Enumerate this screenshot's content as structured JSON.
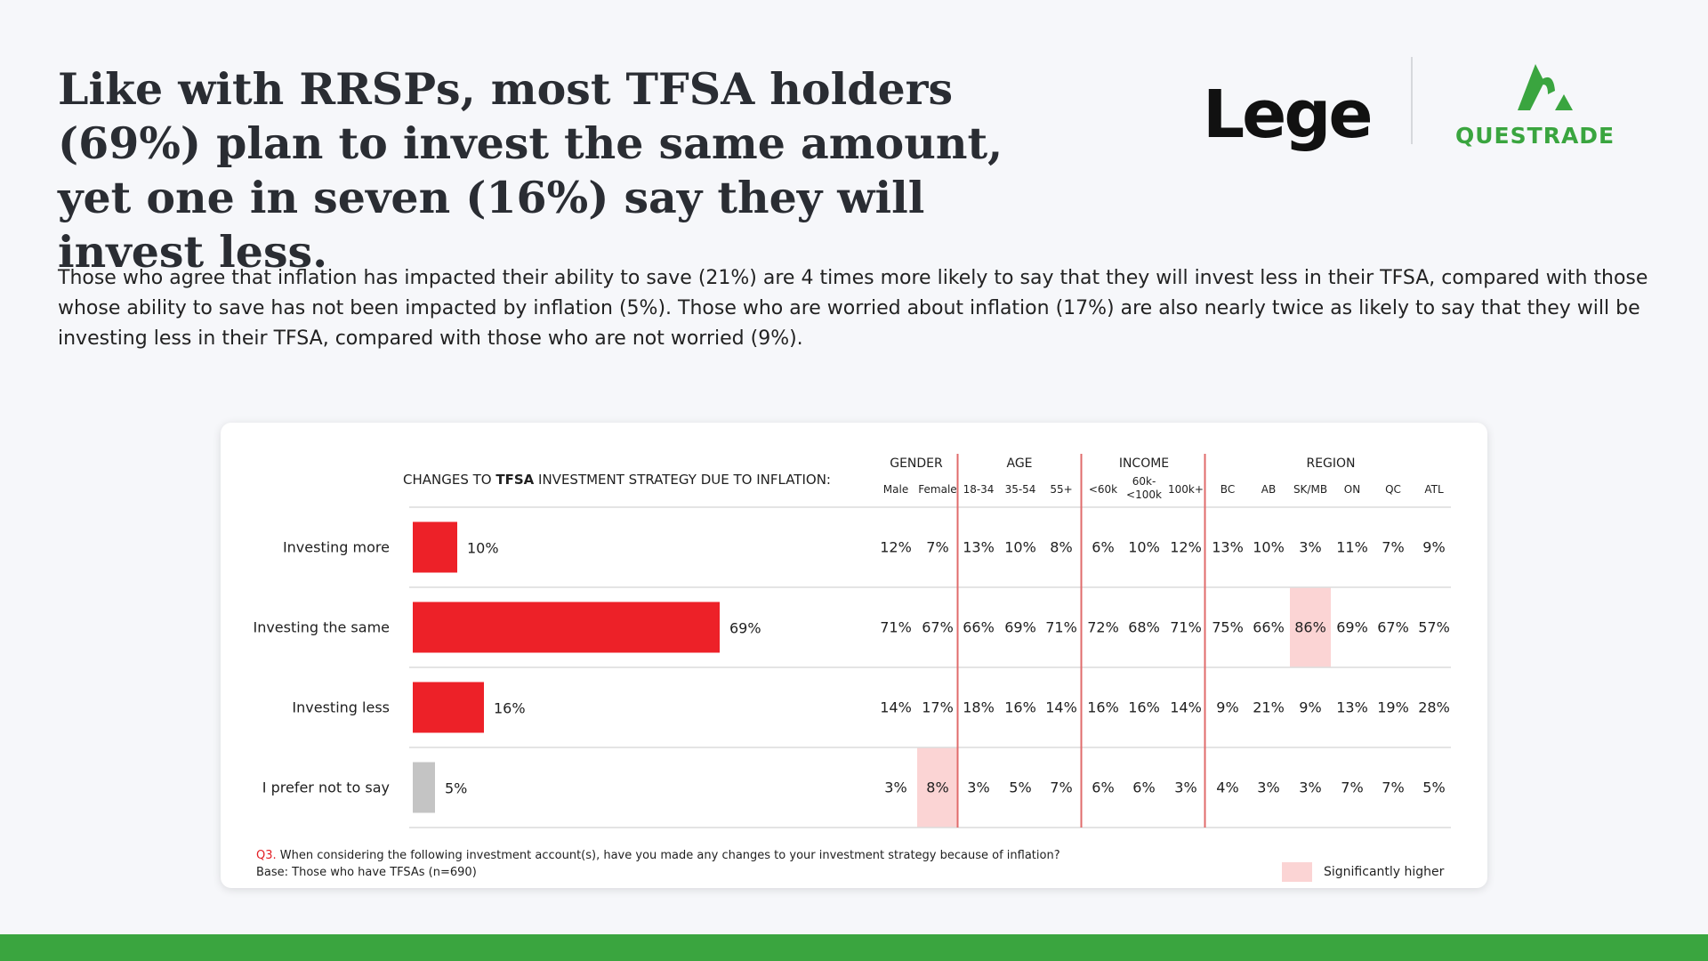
{
  "headline": "Like with RRSPs, most TFSA holders (69%) plan to invest the same amount, yet one in seven (16%) say they will invest less.",
  "body_text": "Those who agree that inflation has impacted their ability to save (21%) are 4 times more likely to say that they will invest less in their TFSA, compared with those whose ability to save has not been impacted by inflation (5%). Those who are worried about inflation (17%) are also nearly twice as likely to say that they will be investing less in their TFSA, compared with those who are not worried (9%).",
  "logos": {
    "leger": "Leger",
    "questrade": "QUESTRADE"
  },
  "colors": {
    "bar_main": "#ed2128",
    "bar_grey": "#c4c4c4",
    "highlight": "#fbd4d4",
    "divider": "#e06b6b",
    "brand_green": "#3aa53f"
  },
  "chart_data": {
    "type": "bar",
    "title_prefix": "CHANGES TO ",
    "title_bold": "TFSA",
    "title_suffix": " INVESTMENT STRATEGY DUE TO INFLATION:",
    "xlim": [
      0,
      100
    ],
    "categories": [
      "Investing more",
      "Investing the same",
      "Investing less",
      "I prefer not to say"
    ],
    "values": [
      10,
      69,
      16,
      5
    ],
    "labels": [
      "10%",
      "69%",
      "16%",
      "5%"
    ],
    "bar_colors": [
      "#ed2128",
      "#ed2128",
      "#ed2128",
      "#c4c4c4"
    ],
    "table": {
      "groups": [
        {
          "name": "GENDER",
          "columns": [
            "Male",
            "Female"
          ]
        },
        {
          "name": "AGE",
          "columns": [
            "18-34",
            "35-54",
            "55+"
          ]
        },
        {
          "name": "INCOME",
          "columns": [
            "<60k",
            "60k-<100k",
            "100k+"
          ]
        },
        {
          "name": "REGION",
          "columns": [
            "BC",
            "AB",
            "SK/MB",
            "ON",
            "QC",
            "ATL"
          ]
        }
      ],
      "rows": [
        [
          "12%",
          "7%",
          "13%",
          "10%",
          "8%",
          "6%",
          "10%",
          "12%",
          "13%",
          "10%",
          "3%",
          "11%",
          "7%",
          "9%"
        ],
        [
          "71%",
          "67%",
          "66%",
          "69%",
          "71%",
          "72%",
          "68%",
          "71%",
          "75%",
          "66%",
          "86%",
          "69%",
          "67%",
          "57%"
        ],
        [
          "14%",
          "17%",
          "18%",
          "16%",
          "14%",
          "16%",
          "16%",
          "14%",
          "9%",
          "21%",
          "9%",
          "13%",
          "19%",
          "28%"
        ],
        [
          "3%",
          "8%",
          "3%",
          "5%",
          "7%",
          "6%",
          "6%",
          "3%",
          "4%",
          "3%",
          "3%",
          "7%",
          "7%",
          "5%"
        ]
      ],
      "highlights": [
        [
          1,
          10
        ],
        [
          3,
          1
        ]
      ]
    }
  },
  "footnote": {
    "q_label": "Q3.",
    "question": " When considering the following investment account(s), have you made any changes to your investment strategy because of inflation?",
    "base": "Base: Those who have TFSAs (n=690)"
  },
  "legend": {
    "label": "Significantly higher"
  }
}
